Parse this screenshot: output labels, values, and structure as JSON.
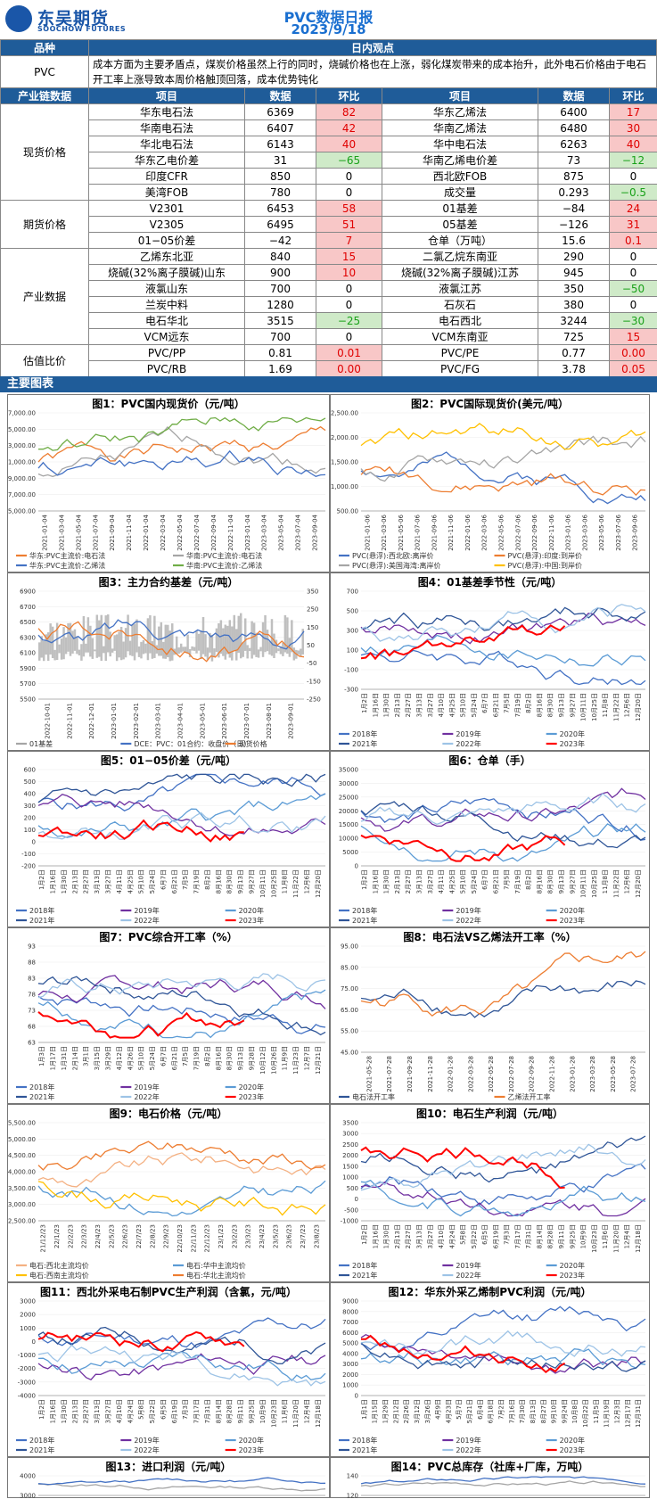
{
  "header": {
    "logo_cn": "东吴期货",
    "logo_en": "SOOCHOW FUTURES",
    "title": "PVC数据日报",
    "date": "2023/9/18"
  },
  "view": {
    "h1": "品种",
    "h2": "日内观点",
    "name": "PVC",
    "text": "成本方面为主要矛盾点，煤炭价格虽然上行的同时，烧碱价格也在上涨，弱化煤炭带来的成本抬升，此外电石价格由于电石开工率上涨导致本周价格触顶回落，成本优势钝化"
  },
  "table_head": [
    "产业链数据",
    "项目",
    "数据",
    "环比",
    "项目",
    "数据",
    "环比"
  ],
  "colors": {
    "accent": "#1f5c99",
    "up": "#e00000",
    "down": "#19a119"
  },
  "groups": [
    {
      "name": "现货价格",
      "rows": [
        [
          "华东电石法",
          "6369",
          "82",
          "华东乙烯法",
          "6400",
          "17"
        ],
        [
          "华南电石法",
          "6407",
          "42",
          "华南乙烯法",
          "6480",
          "30"
        ],
        [
          "华北电石法",
          "6143",
          "40",
          "华中电石法",
          "6263",
          "40"
        ],
        [
          "华东乙电价差",
          "31",
          "−65",
          "华南乙烯电价差",
          "73",
          "−12"
        ],
        [
          "印度CFR",
          "850",
          "0",
          "西北欧FOB",
          "875",
          "0"
        ],
        [
          "美湾FOB",
          "780",
          "0",
          "成交量",
          "0.293",
          "−0.5"
        ]
      ]
    },
    {
      "name": "期货价格",
      "rows": [
        [
          "V2301",
          "6453",
          "58",
          "01基差",
          "−84",
          "24"
        ],
        [
          "V2305",
          "6495",
          "51",
          "05基差",
          "−126",
          "31"
        ],
        [
          "01−05价差",
          "−42",
          "7",
          "仓单（万吨）",
          "15.6",
          "0.1"
        ]
      ]
    },
    {
      "name": "产业数据",
      "rows": [
        [
          "乙烯东北亚",
          "840",
          "15",
          "二氯乙烷东南亚",
          "290",
          "0"
        ],
        [
          "烧碱(32%离子膜碱)山东",
          "900",
          "10",
          "烧碱(32%离子膜碱)江苏",
          "945",
          "0"
        ],
        [
          "液氯山东",
          "700",
          "0",
          "液氯江苏",
          "350",
          "−50"
        ],
        [
          "兰炭中料",
          "1280",
          "0",
          "石灰石",
          "380",
          "0"
        ],
        [
          "电石华北",
          "3515",
          "−25",
          "电石西北",
          "3244",
          "−30"
        ],
        [
          "VCM远东",
          "700",
          "0",
          "VCM东南亚",
          "725",
          "15"
        ]
      ]
    },
    {
      "name": "估值比价",
      "rows": [
        [
          "PVC/PP",
          "0.81",
          "0.01",
          "PVC/PE",
          "0.77",
          "0.00"
        ],
        [
          "PVC/RB",
          "1.69",
          "0.00",
          "PVC/FG",
          "3.78",
          "0.05"
        ]
      ]
    }
  ],
  "section2": "主要图表",
  "charts": [
    {
      "title": "图1：PVC国内现货价（元/吨）",
      "yticks": [
        "17,000.00",
        "15,000.00",
        "13,000.00",
        "11,000.00",
        "9,000.00",
        "7,000.00",
        "5,000.00"
      ],
      "xticks": [
        "2021-01-04",
        "2021-03-04",
        "2021-05-04",
        "2021-07-04",
        "2021-09-04",
        "2021-11-04",
        "2022-01-04",
        "2022-03-04",
        "2022-05-04",
        "2022-07-04",
        "2022-09-04",
        "2022-11-04",
        "2023-01-04",
        "2023-03-04",
        "2023-05-04",
        "2023-07-04",
        "2023-09-04"
      ],
      "legend": [
        "华东:PVC主流价:电石法",
        "华南:PVC主流价:电石法",
        "华东:PVC主流价:乙烯法",
        "华南:PVC主流价:乙烯法"
      ]
    },
    {
      "title": "图2：PVC国际现货价(美元/吨）",
      "yticks": [
        "2,500.00",
        "2,000.00",
        "1,500.00",
        "1,000.00",
        "500.00"
      ],
      "xticks": [
        "2021-01-06",
        "2021-03-06",
        "2021-05-06",
        "2021-07-06",
        "2021-09-06",
        "2021-11-06",
        "2022-01-06",
        "2022-03-06",
        "2022-05-06",
        "2022-07-06",
        "2022-09-06",
        "2022-11-06",
        "2023-01-06",
        "2023-03-06",
        "2023-05-06",
        "2023-07-06",
        "2023-09-06"
      ],
      "legend": [
        "PVC(悬浮):西北欧:离岸价",
        "PVC(悬浮):印度:到岸价",
        "PVC(悬浮):美国海湾:离岸价",
        "PVC(悬浮):中国:到岸价"
      ]
    },
    {
      "title": "图3：主力合约基差（元/吨）",
      "yticks": [
        "6900",
        "6700",
        "6500",
        "6300",
        "6100",
        "5900",
        "5700",
        "5500"
      ],
      "yticks2": [
        "350",
        "250",
        "150",
        "50",
        "-50",
        "-150",
        "-250"
      ],
      "xticks": [
        "2022-10-01",
        "2022-11-01",
        "2022-12-01",
        "2023-01-01",
        "2023-02-01",
        "2023-03-01",
        "2023-04-01",
        "2023-05-01",
        "2023-06-01",
        "2023-07-01",
        "2023-08-01",
        "2023-09-01"
      ],
      "legend": [
        "01基差",
        "DCE：PVC：01合约：收盘价（日）",
        "现货价格"
      ]
    },
    {
      "title": "图4：01基差季节性（元/吨）",
      "yticks": [
        "700",
        "500",
        "300",
        "100",
        "-100",
        "-300"
      ],
      "xticks": [
        "1月2日",
        "1月16日",
        "1月30日",
        "2月13日",
        "2月27日",
        "3月13日",
        "3月27日",
        "4月10日",
        "4月25日",
        "5月10日",
        "5月24日",
        "6月7日",
        "6月21日",
        "7月5日",
        "7月19日",
        "8月2日",
        "8月16日",
        "8月30日",
        "9月13日",
        "9月27日",
        "10月11日",
        "10月25日",
        "11月8日",
        "11月22日",
        "12月6日",
        "12月20日"
      ],
      "legend": [
        "2018年",
        "2019年",
        "2020年",
        "2021年",
        "2022年",
        "2023年"
      ]
    },
    {
      "title": "图5：01−05价差（元/吨）",
      "yticks": [
        "600",
        "500",
        "400",
        "300",
        "200",
        "100",
        "0",
        "-100",
        "-200"
      ],
      "xticks": [
        "1月2日",
        "1月16日",
        "1月30日",
        "2月13日",
        "2月27日",
        "3月13日",
        "3月27日",
        "4月11日",
        "4月25日",
        "5月10日",
        "5月24日",
        "6月7日",
        "6月21日",
        "7月5日",
        "7月19日",
        "8月2日",
        "8月16日",
        "8月30日",
        "9月13日",
        "9月27日",
        "10月11日",
        "10月25日",
        "11月8日",
        "11月22日",
        "12月6日",
        "12月20日"
      ],
      "legend": [
        "2018年",
        "2019年",
        "2020年",
        "2021年",
        "2022年",
        "2023年"
      ]
    },
    {
      "title": "图6：仓单（手）",
      "yticks": [
        "35000",
        "30000",
        "25000",
        "20000",
        "15000",
        "10000",
        "5000",
        "0"
      ],
      "xticks": [
        "1月2日",
        "1月16日",
        "1月30日",
        "2月13日",
        "2月27日",
        "3月13日",
        "3月27日",
        "4月11日",
        "4月25日",
        "5月10日",
        "5月24日",
        "6月7日",
        "6月21日",
        "7月5日",
        "7月19日",
        "8月2日",
        "8月16日",
        "8月30日",
        "9月13日",
        "9月27日",
        "10月11日",
        "10月25日",
        "11月8日",
        "11月22日",
        "12月6日",
        "12月20日"
      ],
      "legend": [
        "2018年",
        "2019年",
        "2020年",
        "2021年",
        "2022年",
        "2023年"
      ]
    },
    {
      "title": "图7：PVC综合开工率（%）",
      "yticks": [
        "93",
        "88",
        "83",
        "78",
        "73",
        "68",
        "63"
      ],
      "xticks": [
        "1月3日",
        "1月17日",
        "1月31日",
        "2月14日",
        "3月1日",
        "3月15日",
        "3月29日",
        "4月12日",
        "4月26日",
        "5月10日",
        "5月24日",
        "6月7日",
        "6月21日",
        "7月5日",
        "7月19日",
        "8月2日",
        "8月16日",
        "8月30日",
        "9月13日",
        "9月28日",
        "10月12日",
        "10月26日",
        "11月9日",
        "11月23日",
        "12月7日",
        "12月21日"
      ],
      "legend": [
        "2018年",
        "2019年",
        "2020年",
        "2021年",
        "2022年",
        "2023年"
      ]
    },
    {
      "title": "图8：电石法VS乙烯法开工率（%）",
      "yticks": [
        "95.00",
        "85.00",
        "75.00",
        "65.00",
        "55.00",
        "45.00"
      ],
      "xticks": [
        "2021-05-28",
        "2021-07-28",
        "2021-09-28",
        "2021-11-28",
        "2022-01-28",
        "2022-03-28",
        "2022-05-28",
        "2022-07-28",
        "2022-09-28",
        "2022-11-28",
        "2023-01-28",
        "2023-03-28",
        "2023-05-28",
        "2023-07-28"
      ],
      "legend": [
        "电石法开工率",
        "乙烯法开工率"
      ]
    },
    {
      "title": "图9：电石价格（元/吨）",
      "yticks": [
        "5,500.00",
        "5,000.00",
        "4,500.00",
        "4,000.00",
        "3,500.00",
        "3,000.00",
        "2,500.00"
      ],
      "xticks": [
        "21/12/23",
        "22/1/23",
        "22/2/23",
        "22/3/23",
        "22/4/23",
        "22/5/23",
        "22/6/23",
        "22/7/23",
        "22/8/23",
        "22/9/23",
        "22/10/23",
        "22/11/23",
        "22/12/23",
        "23/1/23",
        "23/2/23",
        "23/3/23",
        "23/4/23",
        "23/5/23",
        "23/6/23",
        "23/7/23",
        "23/8/23"
      ],
      "legend": [
        "电石:西北主流均价",
        "电石:华中主流均价",
        "电石:西南主流均价",
        "电石:华北主流均价"
      ]
    },
    {
      "title": "图10：电石生产利润（元/吨）",
      "yticks": [
        "3500",
        "3000",
        "2500",
        "2000",
        "1500",
        "1000",
        "500",
        "0",
        "-500",
        "-1000"
      ],
      "xticks": [
        "1月2日",
        "1月16日",
        "1月30日",
        "2月13日",
        "2月27日",
        "3月13日",
        "3月27日",
        "4月10日",
        "4月24日",
        "5月8日",
        "5月22日",
        "6月5日",
        "6月19日",
        "7月3日",
        "7月17日",
        "7月31日",
        "8月14日",
        "8月28日",
        "9月11日",
        "9月25日",
        "10月9日",
        "10月23日",
        "11月6日",
        "11月20日",
        "12月4日",
        "12月18日"
      ],
      "legend": [
        "2018年",
        "2019年",
        "2020年",
        "2021年",
        "2022年",
        "2023年"
      ]
    },
    {
      "title": "图11：西北外采电石制PVC生产利润（含氯，元/吨）",
      "yticks": [
        "3000",
        "2000",
        "1000",
        "0",
        "-1000",
        "-2000",
        "-3000",
        "-4000"
      ],
      "xticks": [
        "1月2日",
        "1月16日",
        "1月30日",
        "2月13日",
        "2月27日",
        "3月13日",
        "3月27日",
        "4月10日",
        "4月24日",
        "5月8日",
        "5月22日",
        "6月5日",
        "6月19日",
        "7月3日",
        "7月17日",
        "7月31日",
        "8月14日",
        "8月28日",
        "9月11日",
        "9月25日",
        "10月9日",
        "10月23日",
        "11月6日",
        "11月20日",
        "12月4日",
        "12月18日"
      ],
      "legend": [
        "2018年",
        "2019年",
        "2020年",
        "2021年",
        "2022年",
        "2023年"
      ]
    },
    {
      "title": "图12：华东外采乙烯制PVC利润（元/吨）",
      "yticks": [
        "9000",
        "8000",
        "7000",
        "6000",
        "5000",
        "4000",
        "3000",
        "2000",
        "1000",
        "0"
      ],
      "xticks": [
        "1月1日",
        "1月15日",
        "1月29日",
        "2月12日",
        "2月26日",
        "3月12日",
        "3月26日",
        "4月9日",
        "4月23日",
        "5月7日",
        "5月21日",
        "6月4日",
        "6月18日",
        "7月2日",
        "7月16日",
        "7月30日",
        "8月13日",
        "8月27日",
        "9月10日",
        "9月24日",
        "10月8日",
        "10月22日",
        "11月5日",
        "11月19日",
        "12月3日",
        "12月17日",
        "12月31日"
      ],
      "legend": [
        "2018年",
        "2019年",
        "2020年",
        "2021年",
        "2022年",
        "2023年"
      ]
    },
    {
      "title": "图13：进口利润（元/吨）",
      "yticks": [
        "4000",
        "3000"
      ],
      "xticks": [],
      "legend": []
    },
    {
      "title": "图14：PVC总库存（社库+厂库，万吨）",
      "yticks": [
        "140",
        "120"
      ],
      "xticks": [],
      "legend": []
    }
  ]
}
